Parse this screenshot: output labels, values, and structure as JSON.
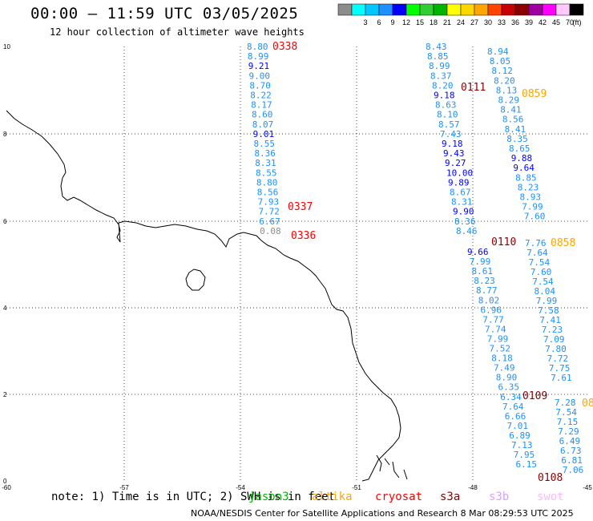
{
  "title": "00:00 – 11:59 UTC 03/05/2025",
  "subtitle": "12 hour collection of altimeter wave heights",
  "legend": {
    "unit": "(ft)",
    "bins": [
      {
        "label": "",
        "color": "#8c8c8c"
      },
      {
        "label": "3",
        "color": "#00ffff"
      },
      {
        "label": "6",
        "color": "#00c8ff"
      },
      {
        "label": "9",
        "color": "#1e90ff"
      },
      {
        "label": "12",
        "color": "#0000ff"
      },
      {
        "label": "15",
        "color": "#00ff00"
      },
      {
        "label": "18",
        "color": "#32cd32"
      },
      {
        "label": "21",
        "color": "#00b400"
      },
      {
        "label": "24",
        "color": "#ffff00"
      },
      {
        "label": "27",
        "color": "#ffd700"
      },
      {
        "label": "30",
        "color": "#ffa500"
      },
      {
        "label": "33",
        "color": "#ff4500"
      },
      {
        "label": "36",
        "color": "#c80000"
      },
      {
        "label": "39",
        "color": "#8b0000"
      },
      {
        "label": "42",
        "color": "#a000a0"
      },
      {
        "label": "45",
        "color": "#ff00ff"
      },
      {
        "label": "70",
        "color": "#ffc8ff"
      },
      {
        "label": "",
        "color": "#000000"
      }
    ]
  },
  "axes": {
    "x_ticks": [
      "-60",
      "-57",
      "-54",
      "-51",
      "-48",
      "-45"
    ],
    "y_ticks": [
      "10",
      "8",
      "6",
      "4",
      "2",
      "0"
    ]
  },
  "tracks": [
    {
      "time": "0338",
      "time_color": "#ff0000",
      "values": [
        {
          "v": "8.80",
          "c": "#1e90ff"
        },
        {
          "v": "8.99",
          "c": "#1e90ff"
        },
        {
          "v": "9.21",
          "c": "#0000ff"
        },
        {
          "v": "9.00",
          "c": "#1e90ff"
        },
        {
          "v": "8.70",
          "c": "#1e90ff"
        },
        {
          "v": "8.22",
          "c": "#1e90ff"
        },
        {
          "v": "8.17",
          "c": "#1e90ff"
        },
        {
          "v": "8.60",
          "c": "#1e90ff"
        },
        {
          "v": "8.07",
          "c": "#1e90ff"
        },
        {
          "v": "9.01",
          "c": "#0000ff"
        },
        {
          "v": "8.55",
          "c": "#1e90ff"
        },
        {
          "v": "8.36",
          "c": "#1e90ff"
        },
        {
          "v": "8.31",
          "c": "#1e90ff"
        },
        {
          "v": "8.55",
          "c": "#1e90ff"
        },
        {
          "v": "8.80",
          "c": "#1e90ff"
        },
        {
          "v": "8.56",
          "c": "#1e90ff"
        },
        {
          "v": "7.93",
          "c": "#1e90ff"
        },
        {
          "v": "7.72",
          "c": "#1e90ff"
        },
        {
          "v": "6.67",
          "c": "#1e90ff"
        },
        {
          "v": "0.08",
          "c": "#8c8c8c"
        }
      ]
    },
    {
      "time": "0111",
      "time_color": "#8b0000",
      "values": [
        {
          "v": "8.43",
          "c": "#1e90ff"
        },
        {
          "v": "8.85",
          "c": "#1e90ff"
        },
        {
          "v": "8.99",
          "c": "#1e90ff"
        },
        {
          "v": "8.37",
          "c": "#1e90ff"
        },
        {
          "v": "8.20",
          "c": "#1e90ff"
        },
        {
          "v": "9.18",
          "c": "#0000ff"
        },
        {
          "v": "8.63",
          "c": "#1e90ff"
        },
        {
          "v": "8.10",
          "c": "#1e90ff"
        },
        {
          "v": "8.57",
          "c": "#1e90ff"
        },
        {
          "v": "7.43",
          "c": "#1e90ff"
        },
        {
          "v": "9.18",
          "c": "#0000ff"
        },
        {
          "v": "9.43",
          "c": "#0000ff"
        },
        {
          "v": "9.27",
          "c": "#0000ff"
        },
        {
          "v": "10.00",
          "c": "#0000ff"
        },
        {
          "v": "9.89",
          "c": "#0000ff"
        },
        {
          "v": "8.67",
          "c": "#1e90ff"
        },
        {
          "v": "8.31",
          "c": "#1e90ff"
        },
        {
          "v": "9.90",
          "c": "#0000ff"
        },
        {
          "v": "8.36",
          "c": "#1e90ff"
        },
        {
          "v": "8.46",
          "c": "#1e90ff"
        }
      ]
    },
    {
      "time": "0110",
      "time_color": "#8b0000",
      "values": [
        {
          "v": "9.66",
          "c": "#0000ff"
        },
        {
          "v": "7.99",
          "c": "#1e90ff"
        },
        {
          "v": "8.61",
          "c": "#1e90ff"
        },
        {
          "v": "8.23",
          "c": "#1e90ff"
        },
        {
          "v": "8.77",
          "c": "#1e90ff"
        },
        {
          "v": "8.02",
          "c": "#1e90ff"
        },
        {
          "v": "6.96",
          "c": "#1e90ff"
        },
        {
          "v": "7.77",
          "c": "#1e90ff"
        },
        {
          "v": "7.74",
          "c": "#1e90ff"
        },
        {
          "v": "7.99",
          "c": "#1e90ff"
        },
        {
          "v": "7.52",
          "c": "#1e90ff"
        },
        {
          "v": "8.18",
          "c": "#1e90ff"
        },
        {
          "v": "7.49",
          "c": "#1e90ff"
        },
        {
          "v": "8.90",
          "c": "#1e90ff"
        },
        {
          "v": "6.35",
          "c": "#1e90ff"
        },
        {
          "v": "6.34",
          "c": "#1e90ff"
        },
        {
          "v": "7.64",
          "c": "#1e90ff"
        },
        {
          "v": "6.66",
          "c": "#1e90ff"
        },
        {
          "v": "7.01",
          "c": "#1e90ff"
        },
        {
          "v": "6.89",
          "c": "#1e90ff"
        },
        {
          "v": "7.13",
          "c": "#1e90ff"
        },
        {
          "v": "7.95",
          "c": "#1e90ff"
        },
        {
          "v": "6.15",
          "c": "#1e90ff"
        }
      ]
    },
    {
      "time": "0859",
      "time_color": "#ffa500",
      "values": [
        {
          "v": "8.94",
          "c": "#1e90ff"
        },
        {
          "v": "8.05",
          "c": "#1e90ff"
        },
        {
          "v": "8.12",
          "c": "#1e90ff"
        },
        {
          "v": "8.20",
          "c": "#1e90ff"
        },
        {
          "v": "8.13",
          "c": "#1e90ff"
        },
        {
          "v": "8.29",
          "c": "#1e90ff"
        },
        {
          "v": "8.41",
          "c": "#1e90ff"
        },
        {
          "v": "8.56",
          "c": "#1e90ff"
        },
        {
          "v": "8.41",
          "c": "#1e90ff"
        },
        {
          "v": "8.35",
          "c": "#1e90ff"
        },
        {
          "v": "8.65",
          "c": "#1e90ff"
        },
        {
          "v": "9.88",
          "c": "#0000ff"
        },
        {
          "v": "9.64",
          "c": "#0000ff"
        },
        {
          "v": "8.85",
          "c": "#1e90ff"
        },
        {
          "v": "8.23",
          "c": "#1e90ff"
        },
        {
          "v": "8.93",
          "c": "#1e90ff"
        },
        {
          "v": "7.99",
          "c": "#1e90ff"
        },
        {
          "v": "7.60",
          "c": "#1e90ff"
        }
      ]
    },
    {
      "time": "0858",
      "time_color": "#ffa500",
      "values": [
        {
          "v": "7.76",
          "c": "#1e90ff"
        },
        {
          "v": "7.64",
          "c": "#1e90ff"
        },
        {
          "v": "7.54",
          "c": "#1e90ff"
        },
        {
          "v": "7.60",
          "c": "#1e90ff"
        },
        {
          "v": "7.54",
          "c": "#1e90ff"
        },
        {
          "v": "8.04",
          "c": "#1e90ff"
        },
        {
          "v": "7.99",
          "c": "#1e90ff"
        },
        {
          "v": "7.58",
          "c": "#1e90ff"
        },
        {
          "v": "7.41",
          "c": "#1e90ff"
        },
        {
          "v": "7.23",
          "c": "#1e90ff"
        },
        {
          "v": "7.09",
          "c": "#1e90ff"
        },
        {
          "v": "7.80",
          "c": "#1e90ff"
        },
        {
          "v": "7.72",
          "c": "#1e90ff"
        },
        {
          "v": "7.75",
          "c": "#1e90ff"
        },
        {
          "v": "7.61",
          "c": "#1e90ff"
        }
      ]
    },
    {
      "time": "0109",
      "time_color": "#8b0000",
      "values": [
        {
          "v": "7.28",
          "c": "#1e90ff"
        },
        {
          "v": "7.54",
          "c": "#1e90ff"
        },
        {
          "v": "7.15",
          "c": "#1e90ff"
        },
        {
          "v": "7.29",
          "c": "#1e90ff"
        },
        {
          "v": "6.49",
          "c": "#1e90ff"
        },
        {
          "v": "6.73",
          "c": "#1e90ff"
        },
        {
          "v": "6.81",
          "c": "#1e90ff"
        },
        {
          "v": "7.06",
          "c": "#1e90ff"
        }
      ]
    }
  ],
  "extra_time_labels": [
    {
      "text": "0337",
      "color": "#ff0000"
    },
    {
      "text": "0336",
      "color": "#ff0000"
    },
    {
      "text": "0108",
      "color": "#8b0000"
    },
    {
      "text": "08",
      "color": "#ffa500"
    }
  ],
  "note": {
    "prefix": "note: 1) Time is in UTC; 2) SWH is in feet",
    "overlap": "jason3",
    "satellites": [
      {
        "name": "jason3",
        "color": "#00b400"
      },
      {
        "name": "altika",
        "color": "#ffa500"
      },
      {
        "name": "cryosat",
        "color": "#ff0000"
      },
      {
        "name": "s3a",
        "color": "#8b0000"
      },
      {
        "name": "s3b",
        "color": "#d8a0ff"
      },
      {
        "name": "swot",
        "color": "#ffb6ff"
      }
    ]
  },
  "credit": "NOAA/NESDIS Center for Satellite Applications and Research   8 Mar 08:29:53 UTC 2025"
}
